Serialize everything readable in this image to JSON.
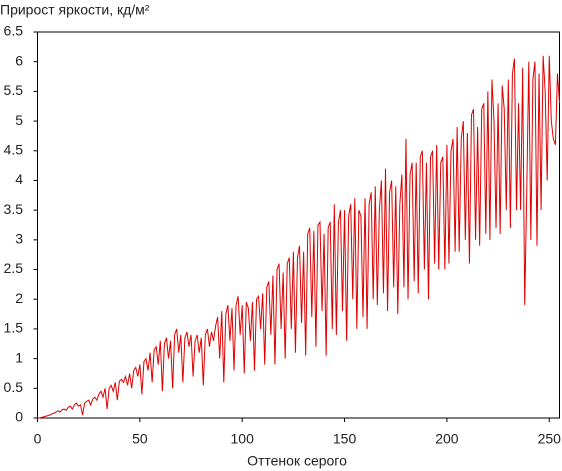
{
  "chart_data": {
    "type": "line",
    "title": "Прирост яркости, кд/м²",
    "x_label": "Оттенок серого",
    "color": "#e00000",
    "xlim": [
      0,
      255
    ],
    "xticks": [
      0,
      50,
      100,
      150,
      200,
      250
    ],
    "ylim": [
      0,
      6.5
    ],
    "yticks": [
      0,
      0.5,
      1,
      1.5,
      2,
      2.5,
      3,
      3.5,
      4,
      4.5,
      5,
      5.5,
      6,
      6.5
    ],
    "x": [
      0,
      1,
      2,
      3,
      4,
      5,
      6,
      7,
      8,
      9,
      10,
      11,
      12,
      13,
      14,
      15,
      16,
      17,
      18,
      19,
      20,
      21,
      22,
      23,
      24,
      25,
      26,
      27,
      28,
      29,
      30,
      31,
      32,
      33,
      34,
      35,
      36,
      37,
      38,
      39,
      40,
      41,
      42,
      43,
      44,
      45,
      46,
      47,
      48,
      49,
      50,
      51,
      52,
      53,
      54,
      55,
      56,
      57,
      58,
      59,
      60,
      61,
      62,
      63,
      64,
      65,
      66,
      67,
      68,
      69,
      70,
      71,
      72,
      73,
      74,
      75,
      76,
      77,
      78,
      79,
      80,
      81,
      82,
      83,
      84,
      85,
      86,
      87,
      88,
      89,
      90,
      91,
      92,
      93,
      94,
      95,
      96,
      97,
      98,
      99,
      100,
      101,
      102,
      103,
      104,
      105,
      106,
      107,
      108,
      109,
      110,
      111,
      112,
      113,
      114,
      115,
      116,
      117,
      118,
      119,
      120,
      121,
      122,
      123,
      124,
      125,
      126,
      127,
      128,
      129,
      130,
      131,
      132,
      133,
      134,
      135,
      136,
      137,
      138,
      139,
      140,
      141,
      142,
      143,
      144,
      145,
      146,
      147,
      148,
      149,
      150,
      151,
      152,
      153,
      154,
      155,
      156,
      157,
      158,
      159,
      160,
      161,
      162,
      163,
      164,
      165,
      166,
      167,
      168,
      169,
      170,
      171,
      172,
      173,
      174,
      175,
      176,
      177,
      178,
      179,
      180,
      181,
      182,
      183,
      184,
      185,
      186,
      187,
      188,
      189,
      190,
      191,
      192,
      193,
      194,
      195,
      196,
      197,
      198,
      199,
      200,
      201,
      202,
      203,
      204,
      205,
      206,
      207,
      208,
      209,
      210,
      211,
      212,
      213,
      214,
      215,
      216,
      217,
      218,
      219,
      220,
      221,
      222,
      223,
      224,
      225,
      226,
      227,
      228,
      229,
      230,
      231,
      232,
      233,
      234,
      235,
      236,
      237,
      238,
      239,
      240,
      241,
      242,
      243,
      244,
      245,
      246,
      247,
      248,
      249,
      250,
      251,
      252,
      253,
      254,
      255
    ],
    "values": [
      0,
      0,
      0.01,
      0.02,
      0.03,
      0.04,
      0.05,
      0.07,
      0.08,
      0.1,
      0.12,
      0.1,
      0.14,
      0.15,
      0.13,
      0.18,
      0.2,
      0.15,
      0.22,
      0.25,
      0.2,
      0.22,
      0.05,
      0.25,
      0.28,
      0.3,
      0.22,
      0.32,
      0.35,
      0.3,
      0.4,
      0.45,
      0.35,
      0.5,
      0.15,
      0.5,
      0.55,
      0.45,
      0.6,
      0.3,
      0.62,
      0.65,
      0.6,
      0.7,
      0.55,
      0.75,
      0.5,
      0.8,
      0.85,
      0.7,
      0.9,
      0.4,
      0.95,
      1.0,
      0.8,
      1.1,
      0.6,
      1.15,
      1.2,
      0.9,
      1.3,
      0.45,
      1.25,
      1.35,
      1.0,
      1.3,
      0.5,
      1.4,
      1.5,
      1.1,
      1.4,
      0.6,
      1.35,
      1.45,
      1.2,
      1.4,
      0.7,
      1.3,
      1.4,
      1.1,
      1.35,
      0.55,
      1.4,
      1.5,
      1.2,
      1.45,
      1.3,
      1.55,
      1.7,
      1.0,
      1.8,
      0.6,
      1.75,
      1.9,
      1.3,
      1.85,
      0.8,
      1.9,
      2.05,
      1.4,
      1.9,
      0.75,
      1.95,
      1.85,
      1.3,
      1.95,
      0.8,
      2.0,
      2.05,
      1.5,
      2.1,
      0.9,
      2.2,
      2.3,
      1.4,
      2.4,
      0.9,
      2.5,
      2.6,
      1.5,
      2.45,
      1.0,
      2.6,
      2.7,
      1.5,
      2.8,
      1.1,
      2.7,
      2.9,
      1.6,
      2.8,
      1.05,
      3.1,
      3.2,
      1.7,
      3.15,
      1.2,
      3.25,
      3.3,
      1.8,
      3.1,
      1.05,
      3.2,
      3.3,
      1.5,
      3.6,
      1.4,
      3.3,
      3.5,
      1.8,
      3.5,
      1.3,
      3.4,
      3.6,
      2.0,
      3.7,
      1.5,
      3.5,
      3.4,
      1.7,
      3.7,
      1.5,
      3.6,
      3.8,
      2.0,
      3.9,
      1.9,
      3.5,
      4.0,
      2.1,
      4.2,
      1.8,
      3.8,
      4.0,
      2.2,
      3.9,
      1.75,
      3.6,
      4.1,
      2.2,
      4.7,
      2.0,
      4.1,
      4.3,
      2.3,
      4.3,
      2.1,
      4.4,
      4.5,
      2.5,
      4.3,
      2.0,
      4.4,
      4.5,
      2.6,
      4.6,
      2.5,
      4.3,
      4.4,
      2.5,
      4.6,
      2.6,
      4.5,
      4.7,
      2.8,
      4.9,
      2.8,
      4.7,
      5.0,
      3.0,
      4.8,
      2.6,
      5.1,
      5.2,
      3.0,
      4.9,
      2.9,
      5.2,
      5.3,
      3.1,
      5.5,
      3.0,
      5.7,
      5.0,
      3.2,
      5.3,
      3.1,
      5.6,
      5.2,
      3.5,
      5.7,
      3.2,
      5.8,
      6.05,
      3.5,
      5.3,
      3.5,
      5.9,
      1.9,
      3.8,
      6.0,
      3.0,
      5.7,
      6.0,
      2.9,
      5.8,
      3.5,
      6.1,
      5.5,
      4.0,
      6.1,
      5.0,
      4.7,
      4.6,
      5.8,
      5.3
    ]
  }
}
